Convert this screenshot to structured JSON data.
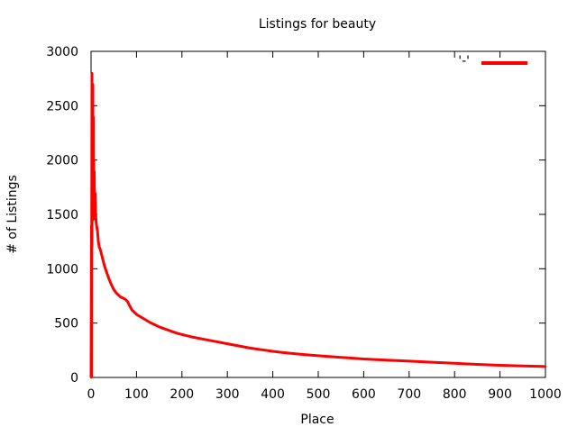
{
  "chart_data": {
    "type": "line",
    "title": "Listings for beauty",
    "xlabel": "Place",
    "ylabel": "# of Listings",
    "xlim": [
      0,
      1000
    ],
    "ylim": [
      0,
      3000
    ],
    "x_ticks": [
      0,
      100,
      200,
      300,
      400,
      500,
      600,
      700,
      800,
      900,
      1000
    ],
    "y_ticks": [
      0,
      500,
      1000,
      1500,
      2000,
      2500,
      3000
    ],
    "grid": false,
    "legend_position": "top-right",
    "legend_label": "'-'",
    "series": [
      {
        "color": "#ff0000",
        "x": [
          0,
          1,
          1,
          2,
          2,
          3,
          3,
          4,
          4,
          5,
          5,
          6,
          6,
          7,
          8,
          9,
          10,
          12,
          14,
          16,
          18,
          20,
          22,
          25,
          30,
          35,
          40,
          45,
          50,
          55,
          60,
          65,
          70,
          75,
          80,
          85,
          90,
          95,
          100,
          110,
          120,
          130,
          140,
          150,
          160,
          170,
          180,
          190,
          200,
          225,
          250,
          275,
          300,
          325,
          350,
          375,
          400,
          425,
          450,
          475,
          500,
          550,
          600,
          650,
          700,
          750,
          800,
          850,
          900,
          950,
          1000
        ],
        "y": [
          0,
          1400,
          0,
          2800,
          1200,
          2500,
          1600,
          2700,
          1500,
          2400,
          1450,
          2000,
          1500,
          1900,
          1550,
          1700,
          1500,
          1400,
          1350,
          1250,
          1200,
          1180,
          1150,
          1100,
          1020,
          960,
          900,
          850,
          810,
          780,
          760,
          740,
          730,
          720,
          700,
          660,
          620,
          600,
          580,
          555,
          530,
          505,
          485,
          465,
          450,
          435,
          420,
          405,
          395,
          370,
          350,
          330,
          310,
          290,
          270,
          255,
          240,
          228,
          218,
          208,
          200,
          185,
          170,
          160,
          150,
          140,
          130,
          120,
          112,
          105,
          100
        ]
      }
    ]
  }
}
